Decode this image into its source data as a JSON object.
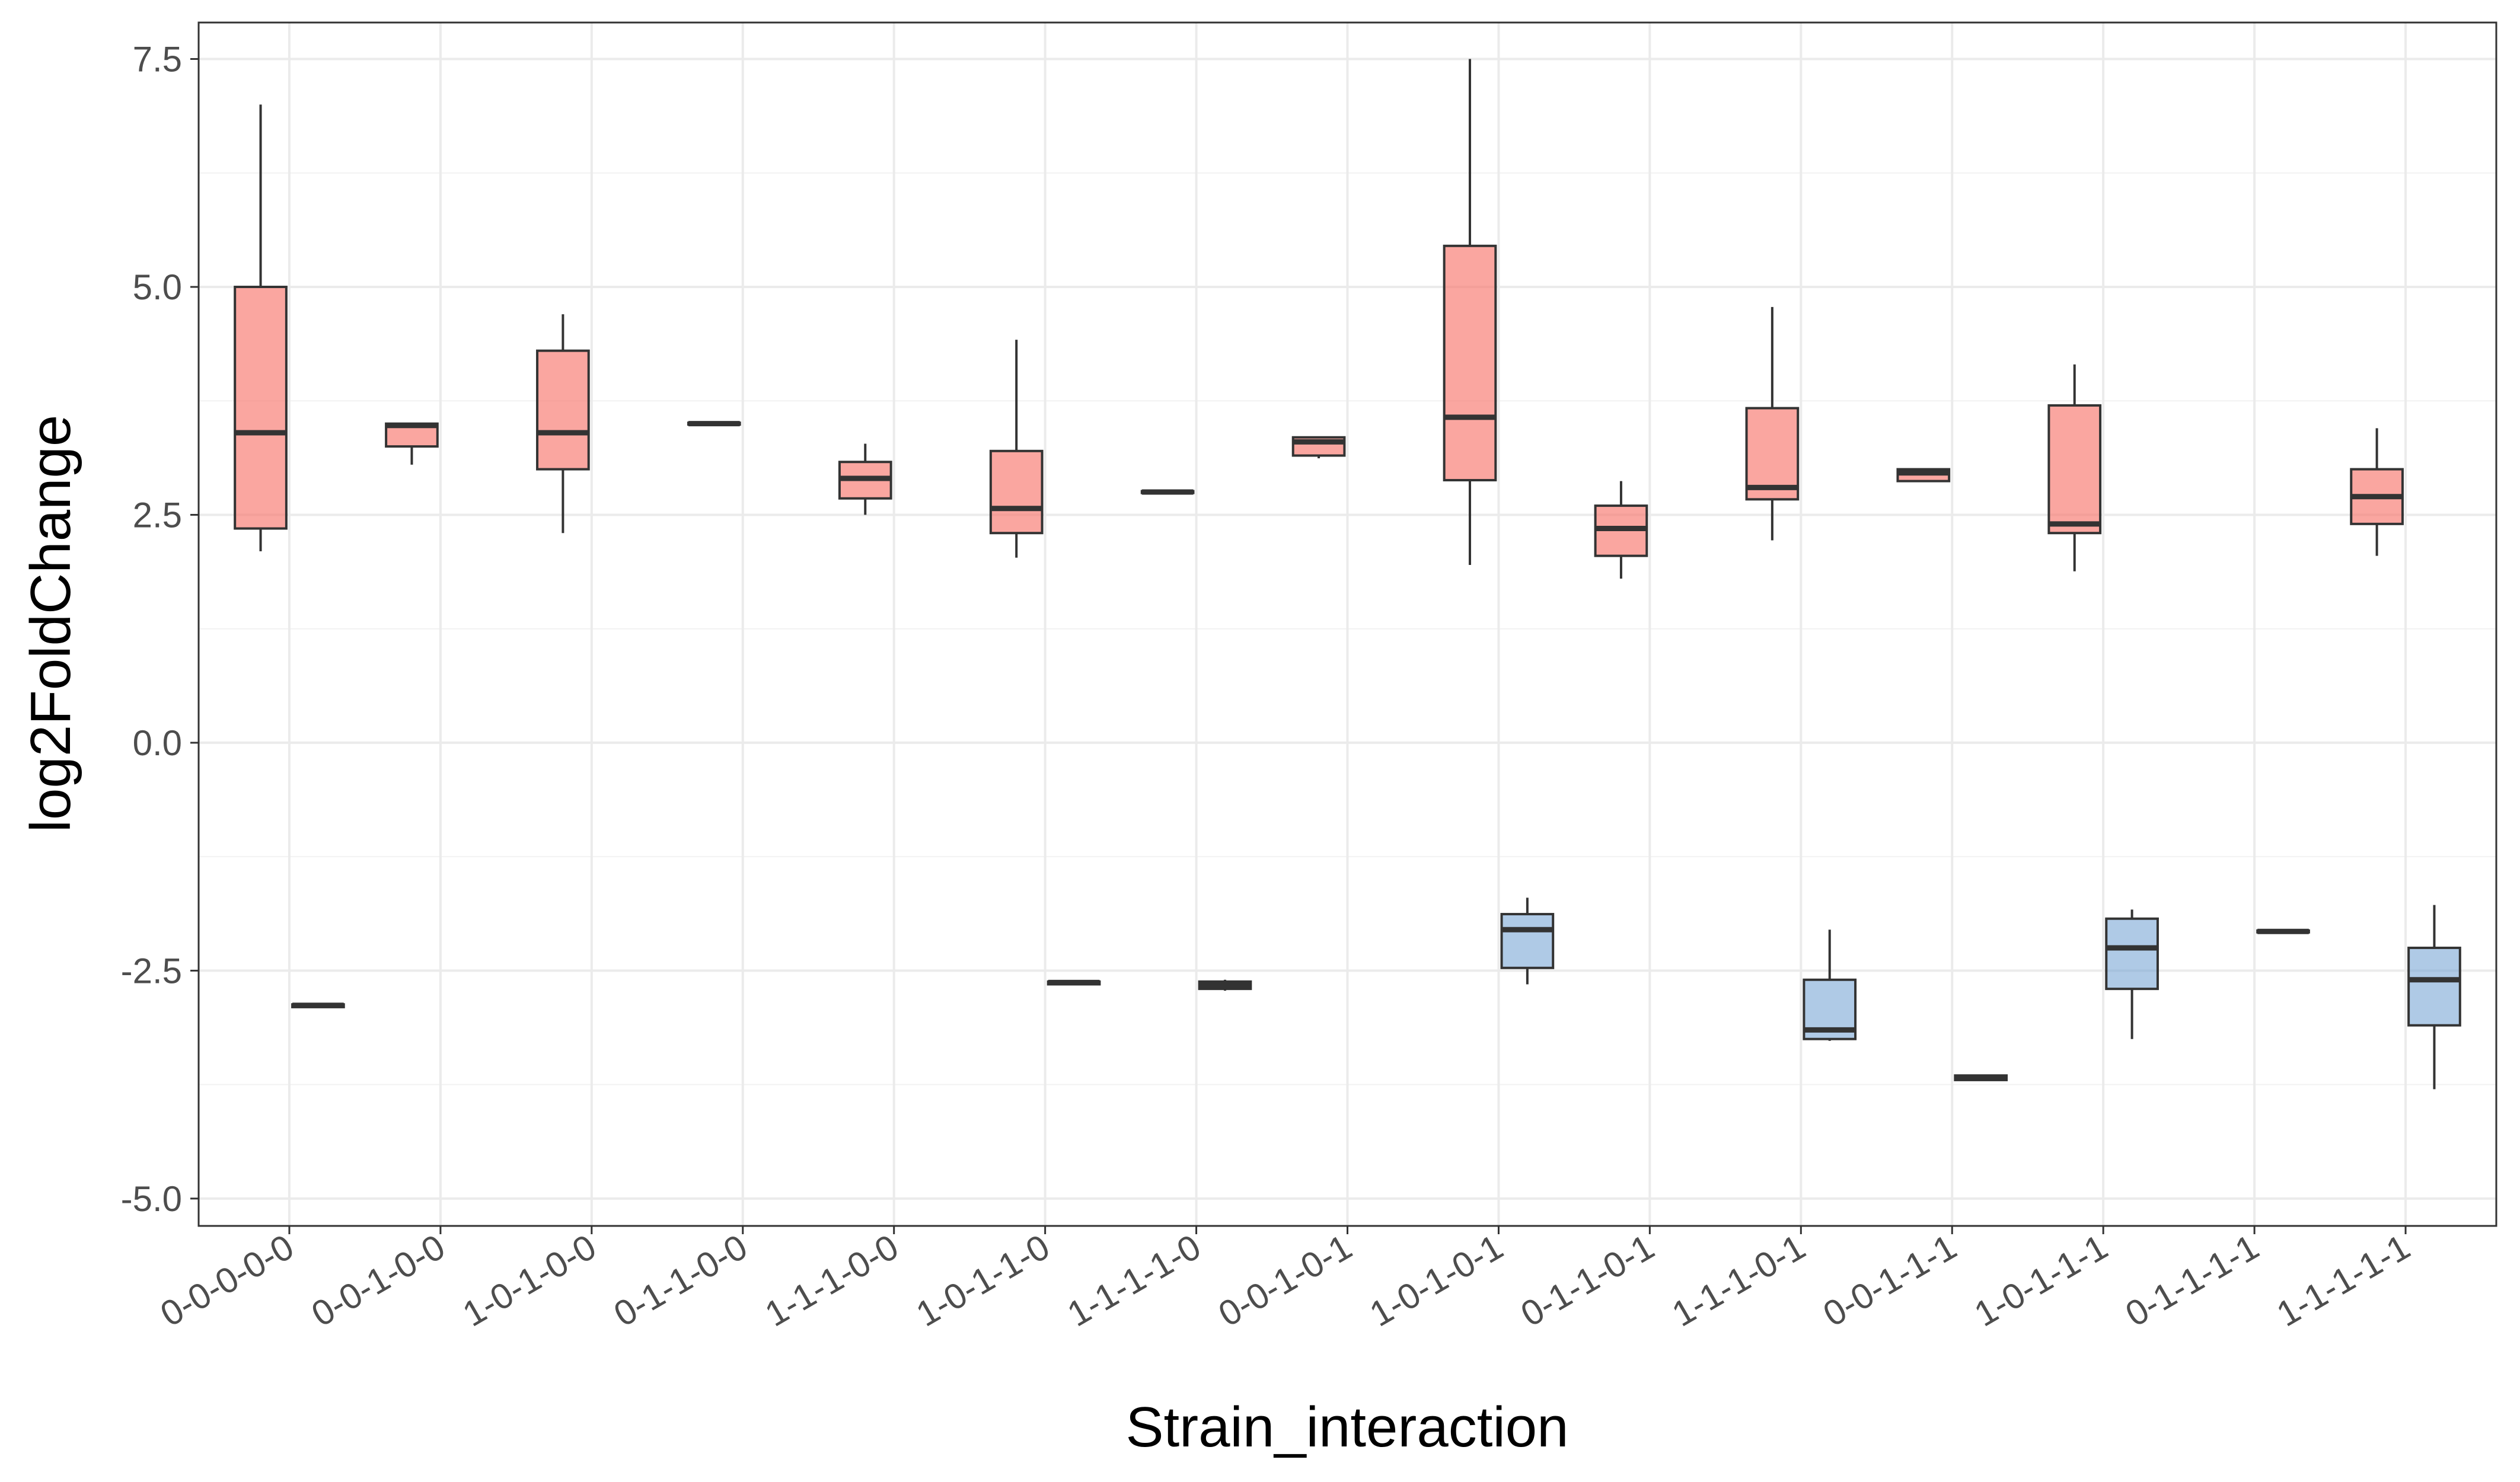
{
  "chart_data": {
    "type": "boxplot",
    "xlabel": "Strain_interaction",
    "ylabel": "log2FoldChange",
    "ylim": [
      -5.3,
      7.9
    ],
    "yticks": [
      "7.5",
      "5.0",
      "2.5",
      "0.0",
      "-2.5",
      "-5.0"
    ],
    "grid": true,
    "legend": "none",
    "colors": {
      "up": "#F8766D",
      "down": "#6E9FD1",
      "up_alpha": 0.65,
      "down_alpha": 0.55
    },
    "categories": [
      "0-0-0-0-0",
      "0-0-1-0-0",
      "1-0-1-0-0",
      "0-1-1-0-0",
      "1-1-1-0-0",
      "1-0-1-1-0",
      "1-1-1-1-0",
      "0-0-1-0-1",
      "1-0-1-0-1",
      "0-1-1-0-1",
      "1-1-1-0-1",
      "0-0-1-1-1",
      "1-0-1-1-1",
      "0-1-1-1-1",
      "1-1-1-1-1"
    ],
    "series": [
      {
        "group": "up",
        "boxes": [
          {
            "category": "0-0-0-0-0",
            "min": 2.1,
            "q1": 2.35,
            "median": 3.4,
            "q3": 5.0,
            "max": 7.0
          },
          {
            "category": "0-0-1-0-0",
            "min": 3.05,
            "q1": 3.25,
            "median": 3.48,
            "q3": 3.5,
            "max": 3.5
          },
          {
            "category": "1-0-1-0-0",
            "min": 2.3,
            "q1": 3.0,
            "median": 3.4,
            "q3": 4.3,
            "max": 4.7
          },
          {
            "category": "0-1-1-0-0",
            "min": 3.49,
            "q1": 3.49,
            "median": 3.5,
            "q3": 3.51,
            "max": 3.51
          },
          {
            "category": "1-1-1-0-0",
            "min": 2.5,
            "q1": 2.68,
            "median": 2.9,
            "q3": 3.08,
            "max": 3.28
          },
          {
            "category": "1-0-1-1-0",
            "min": 2.03,
            "q1": 2.3,
            "median": 2.57,
            "q3": 3.2,
            "max": 4.42
          },
          {
            "category": "1-1-1-1-0",
            "min": 2.74,
            "q1": 2.74,
            "median": 2.75,
            "q3": 2.76,
            "max": 2.76
          },
          {
            "category": "0-0-1-0-1",
            "min": 3.12,
            "q1": 3.15,
            "median": 3.3,
            "q3": 3.35,
            "max": 3.35
          },
          {
            "category": "1-0-1-0-1",
            "min": 1.95,
            "q1": 2.88,
            "median": 3.57,
            "q3": 5.45,
            "max": 7.5
          },
          {
            "category": "0-1-1-0-1",
            "min": 1.8,
            "q1": 2.05,
            "median": 2.35,
            "q3": 2.6,
            "max": 2.87
          },
          {
            "category": "1-1-1-0-1",
            "min": 2.22,
            "q1": 2.67,
            "median": 2.8,
            "q3": 3.67,
            "max": 4.78
          },
          {
            "category": "0-0-1-1-1",
            "min": 2.87,
            "q1": 2.87,
            "median": 2.96,
            "q3": 3.0,
            "max": 3.0
          },
          {
            "category": "1-0-1-1-1",
            "min": 1.88,
            "q1": 2.3,
            "median": 2.4,
            "q3": 3.7,
            "max": 4.15
          },
          {
            "category": "1-1-1-1-1",
            "min": 2.05,
            "q1": 2.4,
            "median": 2.7,
            "q3": 3.0,
            "max": 3.45
          }
        ]
      },
      {
        "group": "down",
        "boxes": [
          {
            "category": "0-0-0-0-0",
            "min": -2.9,
            "q1": -2.9,
            "median": -2.88,
            "q3": -2.87,
            "max": -2.87
          },
          {
            "category": "1-0-1-1-0",
            "min": -2.65,
            "q1": -2.65,
            "median": -2.63,
            "q3": -2.62,
            "max": -2.62
          },
          {
            "category": "1-1-1-1-0",
            "min": -2.72,
            "q1": -2.7,
            "median": -2.66,
            "q3": -2.62,
            "max": -2.6
          },
          {
            "category": "1-0-1-0-1",
            "min": -2.65,
            "q1": -2.47,
            "median": -2.05,
            "q3": -1.88,
            "max": -1.7
          },
          {
            "category": "1-1-1-0-1",
            "min": -3.27,
            "q1": -3.25,
            "median": -3.15,
            "q3": -2.6,
            "max": -2.05
          },
          {
            "category": "0-0-1-1-1",
            "min": -3.7,
            "q1": -3.7,
            "median": -3.67,
            "q3": -3.65,
            "max": -3.65
          },
          {
            "category": "1-0-1-1-1",
            "min": -3.25,
            "q1": -2.7,
            "median": -2.25,
            "q3": -1.93,
            "max": -1.83
          },
          {
            "category": "0-1-1-1-1",
            "min": -2.08,
            "q1": -2.08,
            "median": -2.07,
            "q3": -2.06,
            "max": -2.06
          },
          {
            "category": "1-1-1-1-1",
            "min": -3.8,
            "q1": -3.1,
            "median": -2.6,
            "q3": -2.25,
            "max": -1.78
          }
        ]
      }
    ]
  }
}
